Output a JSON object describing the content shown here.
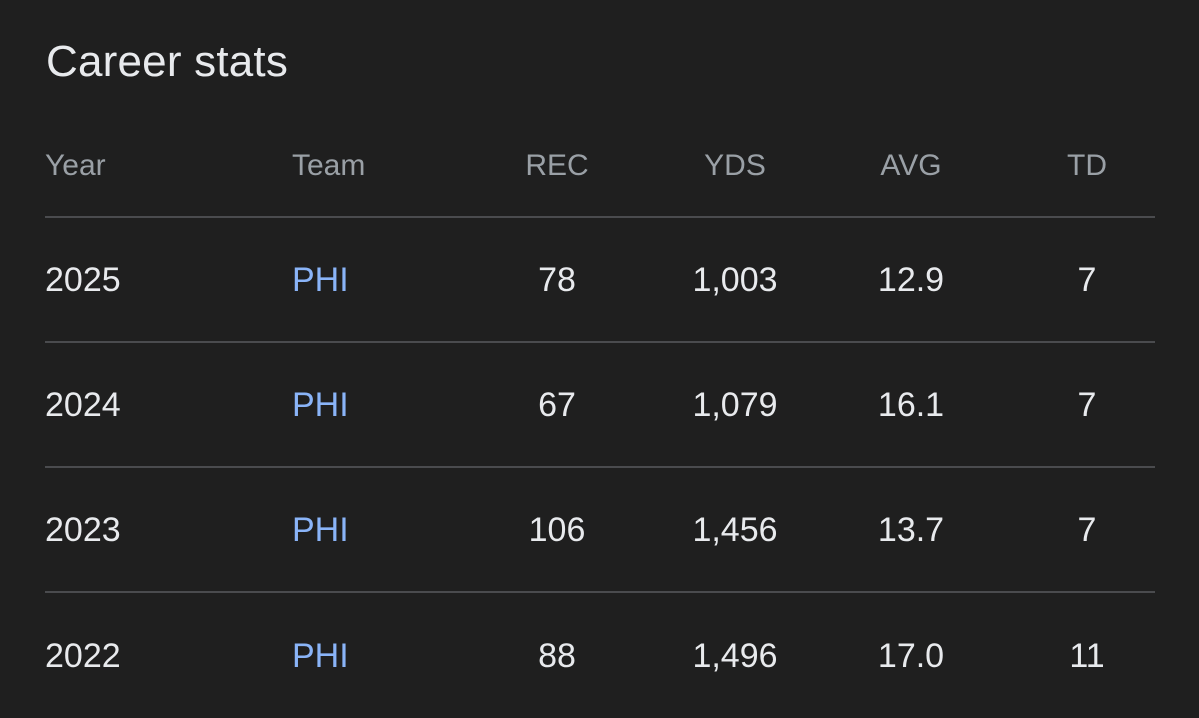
{
  "title": "Career stats",
  "columns": {
    "year": "Year",
    "team": "Team",
    "rec": "REC",
    "yds": "YDS",
    "avg": "AVG",
    "td": "TD"
  },
  "rows": [
    {
      "year": "2025",
      "team": "PHI",
      "rec": "78",
      "yds": "1,003",
      "avg": "12.9",
      "td": "7"
    },
    {
      "year": "2024",
      "team": "PHI",
      "rec": "67",
      "yds": "1,079",
      "avg": "16.1",
      "td": "7"
    },
    {
      "year": "2023",
      "team": "PHI",
      "rec": "106",
      "yds": "1,456",
      "avg": "13.7",
      "td": "7"
    },
    {
      "year": "2022",
      "team": "PHI",
      "rec": "88",
      "yds": "1,496",
      "avg": "17.0",
      "td": "11"
    }
  ],
  "colors": {
    "background": "#1f1f1f",
    "text": "#e8eaed",
    "header_text": "#9aa0a6",
    "link": "#8ab4f8",
    "divider": "#4a4b4e"
  }
}
